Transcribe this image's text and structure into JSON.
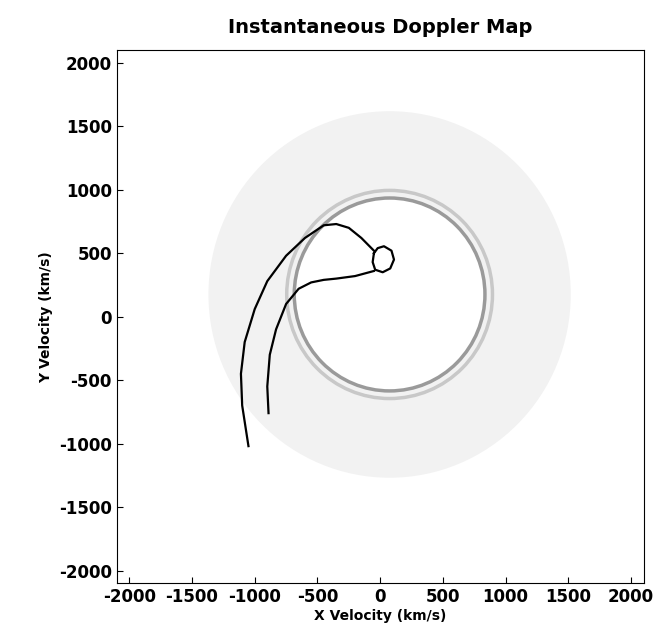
{
  "chart_data": {
    "type": "doppler_map",
    "title": "Instantaneous Doppler Map",
    "x_label": "X Velocity (km/s)",
    "y_label": "Y Velocity (km/s)",
    "xlim": [
      -2100,
      2100
    ],
    "ylim": [
      -2100,
      2100
    ],
    "xticks": [
      -2000,
      -1500,
      -1000,
      -500,
      0,
      500,
      1000,
      1500,
      2000
    ],
    "yticks": [
      -2000,
      -1500,
      -1000,
      -500,
      0,
      500,
      1000,
      1500,
      2000
    ],
    "rings": [
      {
        "x": 75,
        "y": 175,
        "radius": 760,
        "color": "#9a9a9a"
      },
      {
        "x": 75,
        "y": 175,
        "radius": 820,
        "color": "#c8c8c8"
      }
    ],
    "series": [
      {
        "color": "#000000",
        "line_style": "solid",
        "x": [
          -50,
          -20,
          30,
          90,
          110,
          80,
          20,
          -40,
          -60,
          -50
        ],
        "y": [
          500,
          540,
          555,
          520,
          450,
          380,
          350,
          370,
          430,
          500
        ]
      },
      {
        "color": "#000000",
        "line_style": "solid",
        "x": [
          -50,
          -150,
          -250,
          -350,
          -450,
          -600,
          -750,
          -900,
          -1000,
          -1080,
          -1110,
          -1100,
          -1050
        ],
        "y": [
          520,
          620,
          700,
          730,
          720,
          620,
          480,
          280,
          60,
          -200,
          -450,
          -700,
          -1020
        ]
      },
      {
        "color": "#000000",
        "line_style": "solid",
        "x": [
          -50,
          -200,
          -350,
          -450,
          -550,
          -650,
          -750,
          -830,
          -880,
          -900,
          -890
        ],
        "y": [
          360,
          320,
          300,
          290,
          270,
          220,
          100,
          -100,
          -300,
          -550,
          -760
        ]
      }
    ]
  }
}
